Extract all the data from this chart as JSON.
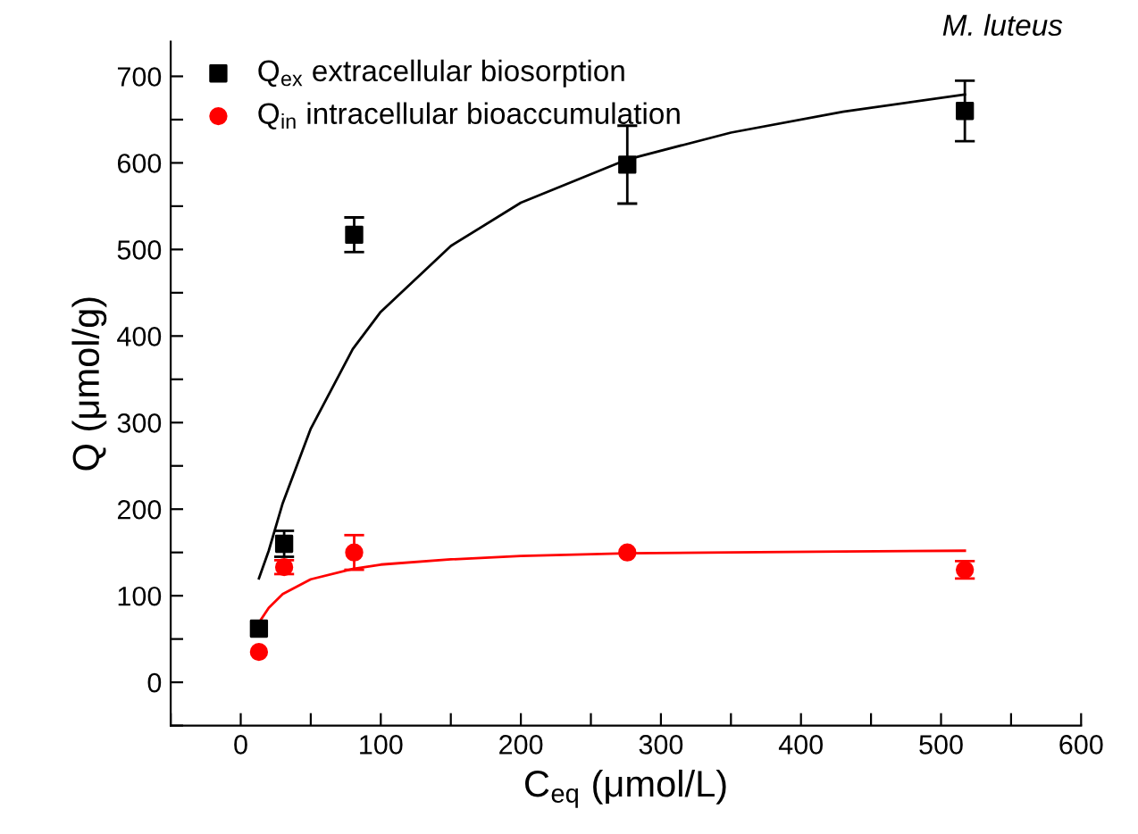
{
  "chart_data": {
    "type": "scatter",
    "xlabel": "C$_{eq}$ (μmol/L)",
    "ylabel": "Q (μmol/g)",
    "annotations": [
      "M. luteus"
    ],
    "xlim": [
      -50,
      600
    ],
    "ylim": [
      -50,
      740
    ],
    "xticks": [
      {
        "value": -50,
        "label": null
      },
      0,
      {
        "value": 50,
        "label": null
      },
      100,
      {
        "value": 150,
        "label": null
      },
      200,
      {
        "value": 250,
        "label": null
      },
      300,
      {
        "value": 350,
        "label": null
      },
      400,
      {
        "value": 450,
        "label": null
      },
      500,
      {
        "value": 550,
        "label": null
      },
      600
    ],
    "yticks": [
      {
        "value": -50,
        "label": null
      },
      0,
      {
        "value": 50,
        "label": null
      },
      100,
      {
        "value": 150,
        "label": null
      },
      200,
      {
        "value": 250,
        "label": null
      },
      300,
      {
        "value": 350,
        "label": null
      },
      400,
      {
        "value": 450,
        "label": null
      },
      500,
      {
        "value": 550,
        "label": null
      },
      600,
      {
        "value": 650,
        "label": null
      },
      700
    ],
    "grid": false,
    "legend": "top left",
    "series": [
      {
        "name": "Q$_{ex}$ extracellular biosorption",
        "marker": "square",
        "color": "#000000",
        "x": [
          13,
          31,
          81,
          276,
          517
        ],
        "values": [
          62,
          160,
          517,
          598,
          660
        ],
        "errors": [
          null,
          15,
          20,
          45,
          35
        ]
      },
      {
        "name": "Q$_{in}$ intracellular bioaccumulation",
        "marker": "circle",
        "color": "#ff0000",
        "x": [
          13,
          31,
          81,
          276,
          517
        ],
        "values": [
          35,
          133,
          150,
          150,
          130
        ],
        "errors": [
          null,
          8,
          20,
          null,
          10
        ]
      },
      {
        "type": "line",
        "color": "#000000",
        "x": [
          13,
          20,
          30,
          50,
          80,
          100,
          150,
          200,
          276,
          350,
          430,
          517
        ],
        "values": [
          120,
          152,
          207,
          293,
          385,
          428,
          504,
          554,
          604,
          635,
          659,
          679
        ]
      },
      {
        "type": "line",
        "color": "#ff0000",
        "x": [
          13,
          20,
          30,
          50,
          80,
          100,
          150,
          200,
          276,
          350,
          430,
          517
        ],
        "values": [
          69,
          86,
          102,
          119,
          131,
          136,
          142,
          146,
          149,
          150,
          151,
          152
        ]
      }
    ]
  }
}
